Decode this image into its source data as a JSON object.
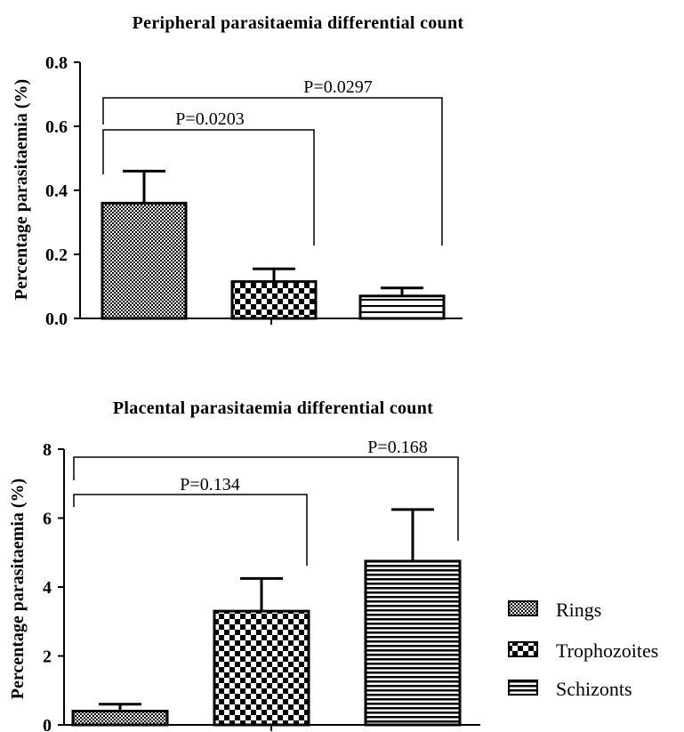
{
  "chart_data": [
    {
      "type": "bar",
      "title": "Peripheral parasitaemia differential count",
      "ylabel": "Percentage parasitaemia (%)",
      "xlabel": "",
      "ylim": [
        0,
        0.8
      ],
      "yticks": [
        "0.0",
        "0.2",
        "0.4",
        "0.6",
        "0.8"
      ],
      "categories": [
        "Rings",
        "Trophozoites",
        "Schizonts"
      ],
      "values": [
        0.36,
        0.115,
        0.07
      ],
      "errors": [
        0.1,
        0.04,
        0.025
      ],
      "comparisons": [
        {
          "from": "Rings",
          "to": "Trophozoites",
          "label": "P=0.0203"
        },
        {
          "from": "Rings",
          "to": "Schizonts",
          "label": "P=0.0297"
        }
      ]
    },
    {
      "type": "bar",
      "title": "Placental parasitaemia differential count",
      "ylabel": "Percentage parasitaemia (%)",
      "xlabel": "",
      "ylim": [
        0,
        8
      ],
      "yticks": [
        "0",
        "2",
        "4",
        "6",
        "8"
      ],
      "categories": [
        "Rings",
        "Trophozoites",
        "Schizonts"
      ],
      "values": [
        0.4,
        3.3,
        4.75
      ],
      "errors": [
        0.2,
        0.95,
        1.5
      ],
      "comparisons": [
        {
          "from": "Rings",
          "to": "Trophozoites",
          "label": "P=0.134"
        },
        {
          "from": "Rings",
          "to": "Schizonts",
          "label": "P=0.168"
        }
      ]
    }
  ],
  "legend": {
    "position": "right",
    "items": [
      {
        "label": "Rings",
        "pattern": "rings"
      },
      {
        "label": "Trophozoites",
        "pattern": "trophozoites"
      },
      {
        "label": "Schizonts",
        "pattern": "schizonts"
      }
    ]
  }
}
